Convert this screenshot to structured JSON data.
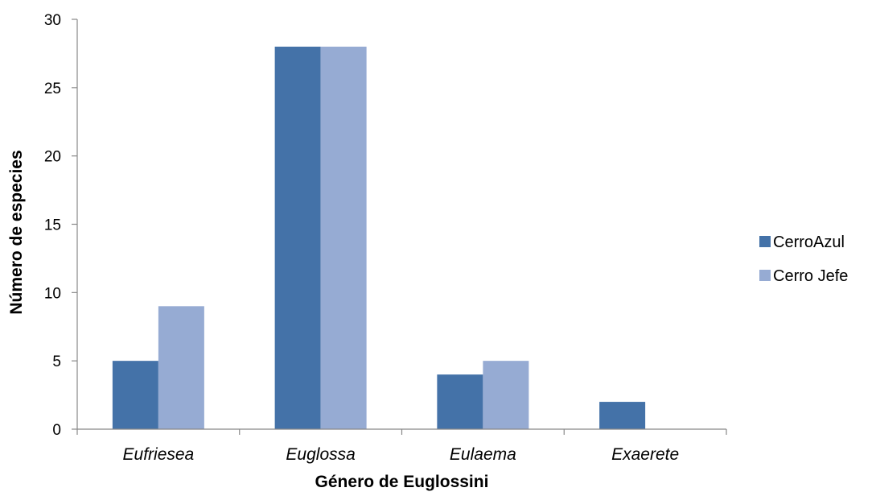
{
  "chart_data": {
    "type": "bar",
    "title": "",
    "xlabel": "Género de Euglossini",
    "ylabel": "Número de especies",
    "categories": [
      "Eufriesea",
      "Euglossa",
      "Eulaema",
      "Exaerete"
    ],
    "series": [
      {
        "name": "CerroAzul",
        "color": "#4472A8",
        "values": [
          5,
          28,
          4,
          2
        ]
      },
      {
        "name": "Cerro Jefe",
        "color": "#96ABD3",
        "values": [
          9,
          28,
          5,
          0
        ]
      }
    ],
    "ylim": [
      0,
      30
    ],
    "yticks": [
      "0",
      "5",
      "10",
      "15",
      "20",
      "25",
      "30"
    ],
    "grid": false,
    "legend": "right"
  }
}
